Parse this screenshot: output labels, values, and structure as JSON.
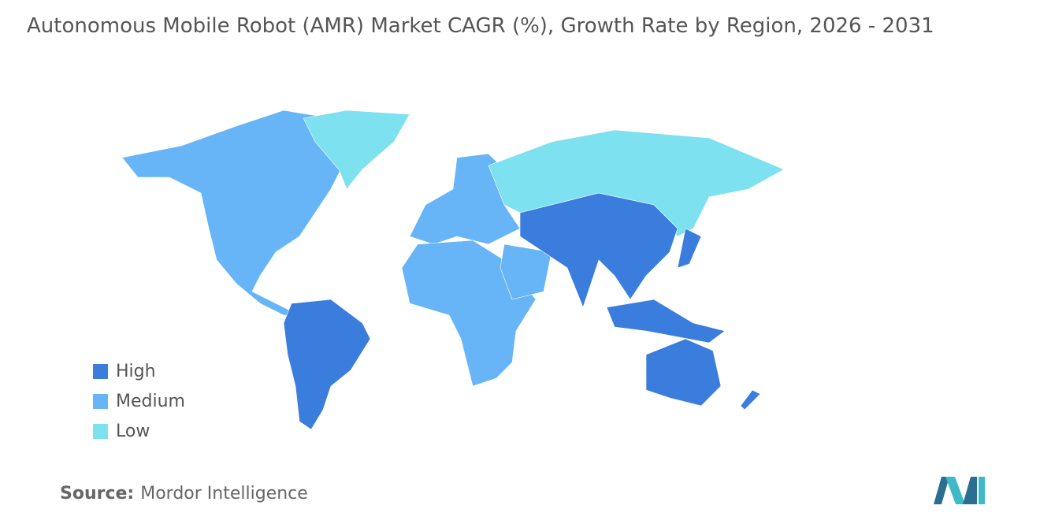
{
  "title": "Autonomous Mobile Robot (AMR) Market CAGR (%), Growth Rate by Region, 2026 - 2031",
  "legend": [
    {
      "name": "High",
      "color": "#3b7ddd"
    },
    {
      "name": "Medium",
      "color": "#67b5f6"
    },
    {
      "name": "Low",
      "color": "#7ee1ef"
    }
  ],
  "source": {
    "label": "Source:",
    "text": "Mordor Intelligence"
  }
}
